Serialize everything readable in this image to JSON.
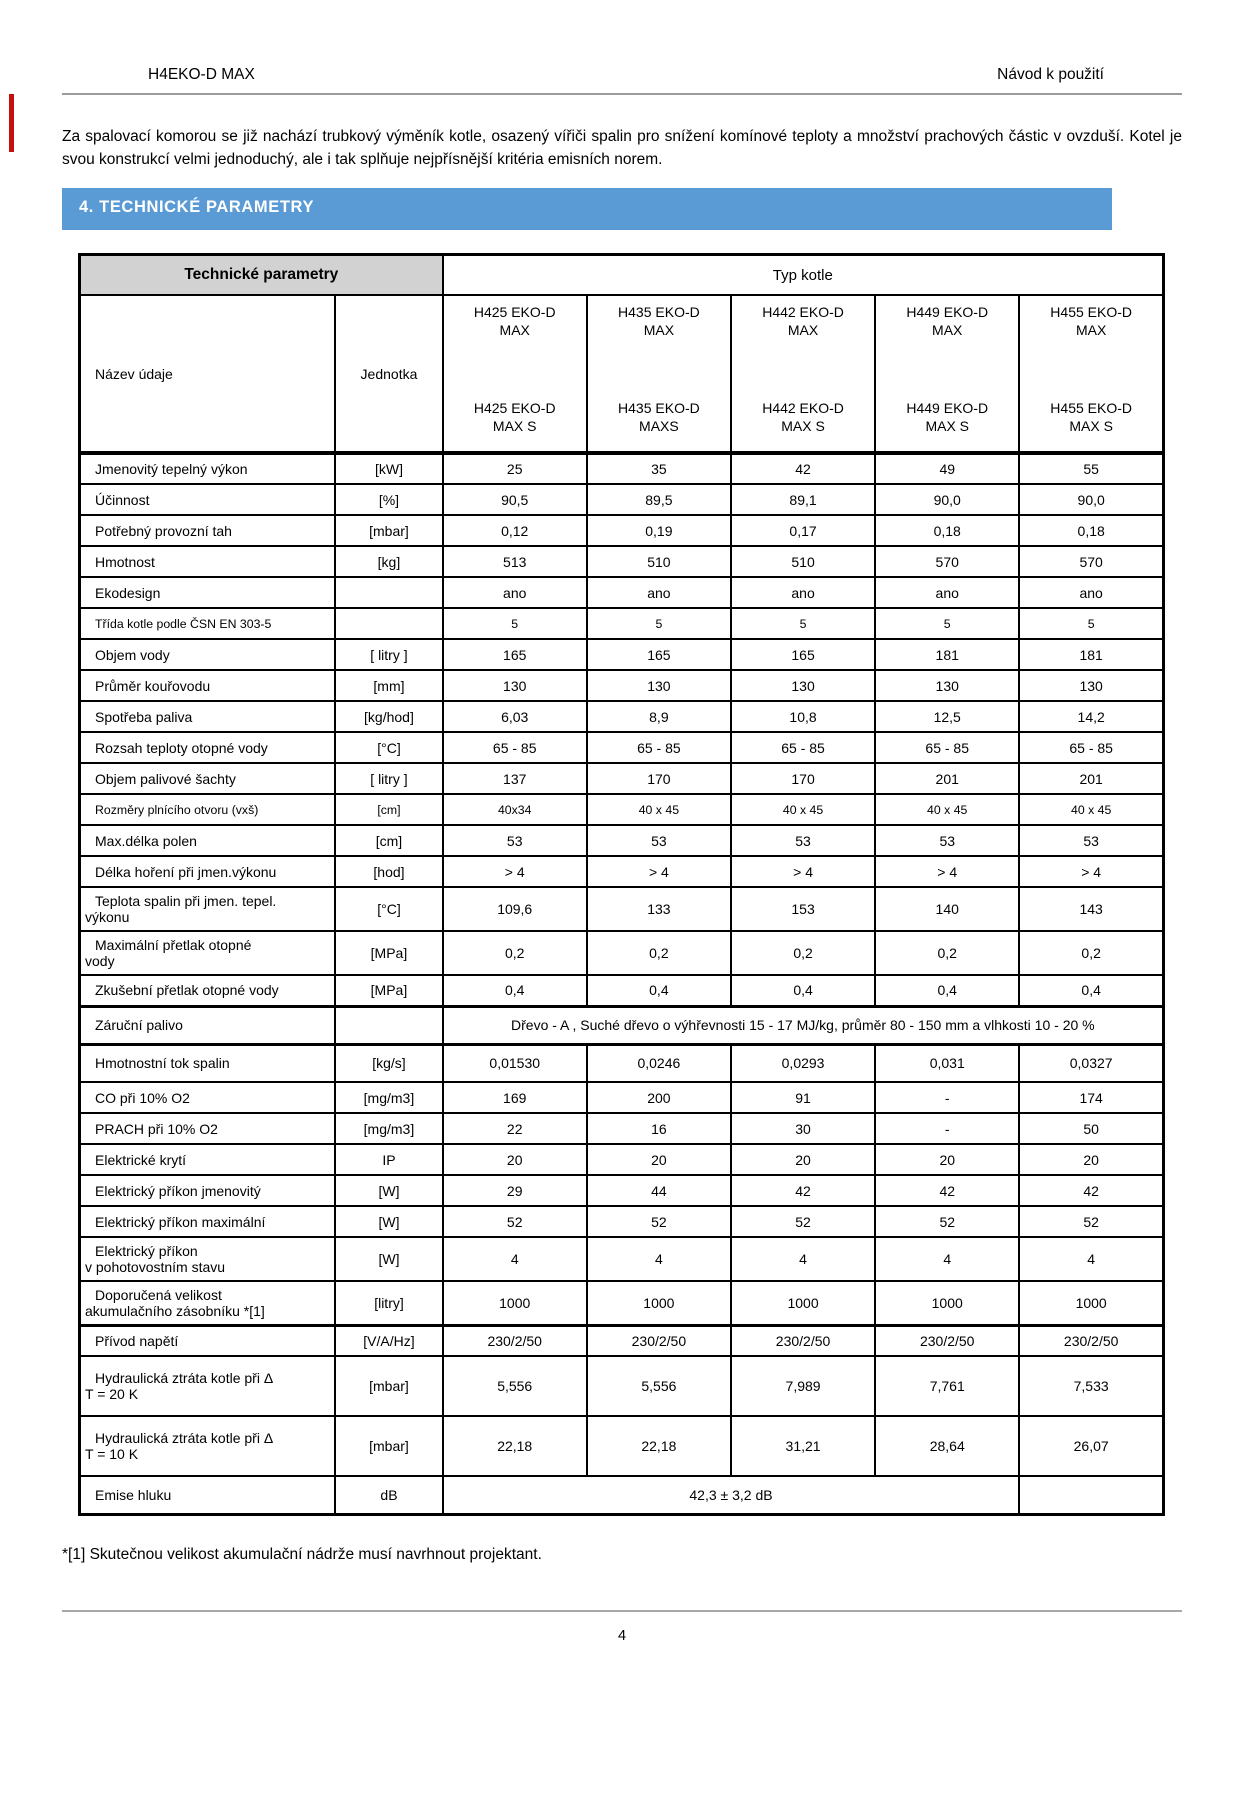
{
  "header": {
    "left": "H4EKO-D MAX",
    "right": "Návod k použití"
  },
  "intro": "Za spalovací komorou se již nachází trubkový výměník kotle, osazený vířiči spalin pro snížení komínové teploty a množství prachových částic v ovzduší. Kotel je svou konstrukcí velmi jednoduchý, ale i tak splňuje nejpřísnější kritéria emisních norem.",
  "section_title": "4. TECHNICKÉ PARAMETRY",
  "colors": {
    "accent_blue": "#5b9bd5",
    "header_cell_gray": "#d2d2d2",
    "rule_gray": "#9c9c9c"
  },
  "table": {
    "corner_label": "Technické parametry",
    "type_header": "Typ kotle",
    "name_col_label": "Název údaje",
    "unit_col_label": "Jednotka",
    "models": [
      {
        "top": [
          "H425 EKO-D",
          "MAX"
        ],
        "bottom": [
          "H425 EKO-D",
          "MAX S"
        ]
      },
      {
        "top": [
          "H435 EKO-D",
          "MAX"
        ],
        "bottom": [
          "H435 EKO-D",
          "MAXS"
        ]
      },
      {
        "top": [
          "H442 EKO-D",
          "MAX"
        ],
        "bottom": [
          "H442 EKO-D",
          "MAX S"
        ]
      },
      {
        "top": [
          "H449 EKO-D",
          "MAX"
        ],
        "bottom": [
          "H449 EKO-D",
          "MAX S"
        ]
      },
      {
        "top": [
          "H455 EKO-D",
          "MAX"
        ],
        "bottom": [
          "H455 EKO-D",
          "MAX S"
        ]
      }
    ],
    "rows": [
      {
        "label": "Jmenovitý tepelný výkon",
        "unit": "[kW]",
        "values": [
          "25",
          "35",
          "42",
          "49",
          "55"
        ]
      },
      {
        "label": "Účinnost",
        "unit": "[%]",
        "values": [
          "90,5",
          "89,5",
          "89,1",
          "90,0",
          "90,0"
        ]
      },
      {
        "label": "Potřebný provozní tah",
        "unit": "[mbar]",
        "values": [
          "0,12",
          "0,19",
          "0,17",
          "0,18",
          "0,18"
        ]
      },
      {
        "label": "Hmotnost",
        "unit": "[kg]",
        "values": [
          "513",
          "510",
          "510",
          "570",
          "570"
        ]
      },
      {
        "label": "Ekodesign",
        "unit": "",
        "values": [
          "ano",
          "ano",
          "ano",
          "ano",
          "ano"
        ]
      },
      {
        "label": "Třída kotle podle ČSN EN 303-5",
        "unit": "",
        "values": [
          "5",
          "5",
          "5",
          "5",
          "5"
        ],
        "cls": "small"
      },
      {
        "label": "Objem vody",
        "unit": "[ litry ]",
        "values": [
          "165",
          "165",
          "165",
          "181",
          "181"
        ]
      },
      {
        "label": "Průměr kouřovodu",
        "unit": "[mm]",
        "values": [
          "130",
          "130",
          "130",
          "130",
          "130"
        ]
      },
      {
        "label": "Spotřeba paliva",
        "unit": "[kg/hod]",
        "values": [
          "6,03",
          "8,9",
          "10,8",
          "12,5",
          "14,2"
        ]
      },
      {
        "label": "Rozsah teploty otopné vody",
        "unit": "[°C]",
        "values": [
          "65 - 85",
          "65 - 85",
          "65 - 85",
          "65 - 85",
          "65 - 85"
        ]
      },
      {
        "label": "Objem palivové šachty",
        "unit": "[ litry ]",
        "values": [
          "137",
          "170",
          "170",
          "201",
          "201"
        ]
      },
      {
        "label": "Rozměry plnícího otvoru (vxš)",
        "unit": "[cm]",
        "values": [
          "40x34",
          "40 x 45",
          "40 x 45",
          "40 x 45",
          "40 x 45"
        ],
        "cls": "small"
      },
      {
        "label": "Max.délka polen",
        "unit": "[cm]",
        "values": [
          "53",
          "53",
          "53",
          "53",
          "53"
        ]
      },
      {
        "label": "Délka hoření při jmen.výkonu",
        "unit": "[hod]",
        "values": [
          "> 4",
          "> 4",
          "> 4",
          "> 4",
          "> 4"
        ]
      },
      {
        "label_lines": [
          "Teplota spalin při jmen. tepel.",
          "výkonu"
        ],
        "unit": "[°C]",
        "values": [
          "109,6",
          "133",
          "153",
          "140",
          "143"
        ],
        "cls": "two"
      },
      {
        "label_lines": [
          "Maximální přetlak otopné",
          "vody"
        ],
        "unit": "[MPa]",
        "values": [
          "0,2",
          "0,2",
          "0,2",
          "0,2",
          "0,2"
        ],
        "cls": "two"
      },
      {
        "label": "Zkušební přetlak otopné vody",
        "unit": "[MPa]",
        "values": [
          "0,4",
          "0,4",
          "0,4",
          "0,4",
          "0,4"
        ]
      },
      {
        "label": "Záruční palivo",
        "unit": "",
        "span_all": "Dřevo - A , Suché dřevo o výhřevnosti 15 - 17 MJ/kg, průměr 80 - 150 mm a vlhkosti 10 - 20 %",
        "cls": "h38 group"
      },
      {
        "label": "Hmotnostní tok spalin",
        "unit": "[kg/s]",
        "values": [
          "0,01530",
          "0,0246",
          "0,0293",
          "0,031",
          "0,0327"
        ],
        "cls": "h38"
      },
      {
        "label": "CO při 10% O2",
        "unit": "[mg/m3]",
        "values": [
          "169",
          "200",
          "91",
          "-",
          "174"
        ]
      },
      {
        "label": "PRACH při 10% O2",
        "unit": "[mg/m3]",
        "values": [
          "22",
          "16",
          "30",
          "-",
          "50"
        ]
      },
      {
        "label": "Elektrické krytí",
        "unit": "IP",
        "values": [
          "20",
          "20",
          "20",
          "20",
          "20"
        ]
      },
      {
        "label": "Elektrický příkon jmenovitý",
        "unit": "[W]",
        "values": [
          "29",
          "44",
          "42",
          "42",
          "42"
        ]
      },
      {
        "label": "Elektrický příkon maximální",
        "unit": "[W]",
        "values": [
          "52",
          "52",
          "52",
          "52",
          "52"
        ]
      },
      {
        "label_lines": [
          "Elektrický příkon",
          "v pohotovostním stavu"
        ],
        "unit": "[W]",
        "values": [
          "4",
          "4",
          "4",
          "4",
          "4"
        ],
        "cls": "two"
      },
      {
        "label_lines": [
          "Doporučená velikost",
          "akumulačního zásobníku *[1]"
        ],
        "unit": "[litry]",
        "values": [
          "1000",
          "1000",
          "1000",
          "1000",
          "1000"
        ],
        "cls": "two"
      },
      {
        "label": "Přívod napětí",
        "unit": "[V/A/Hz]",
        "values": [
          "230/2/50",
          "230/2/50",
          "230/2/50",
          "230/2/50",
          "230/2/50"
        ],
        "cls": "thick-top"
      },
      {
        "label_lines": [
          "Hydraulická ztráta kotle při Δ",
          "T = 20 K"
        ],
        "unit": "[mbar]",
        "values": [
          "5,556",
          "5,556",
          "7,989",
          "7,761",
          "7,533"
        ],
        "cls": "two tall"
      },
      {
        "label_lines": [
          "Hydraulická ztráta kotle při Δ",
          "T = 10 K"
        ],
        "unit": "[mbar]",
        "values": [
          "22,18",
          "22,18",
          "31,21",
          "28,64",
          "26,07"
        ],
        "cls": "two tall"
      },
      {
        "label": "Emise hluku",
        "unit": "dB",
        "span4": "42,3 ± 3,2 dB",
        "last": "",
        "cls": "h38"
      }
    ]
  },
  "footnote": "*[1] Skutečnou velikost akumulační nádrže musí navrhnout projektant.",
  "page_number": "4"
}
